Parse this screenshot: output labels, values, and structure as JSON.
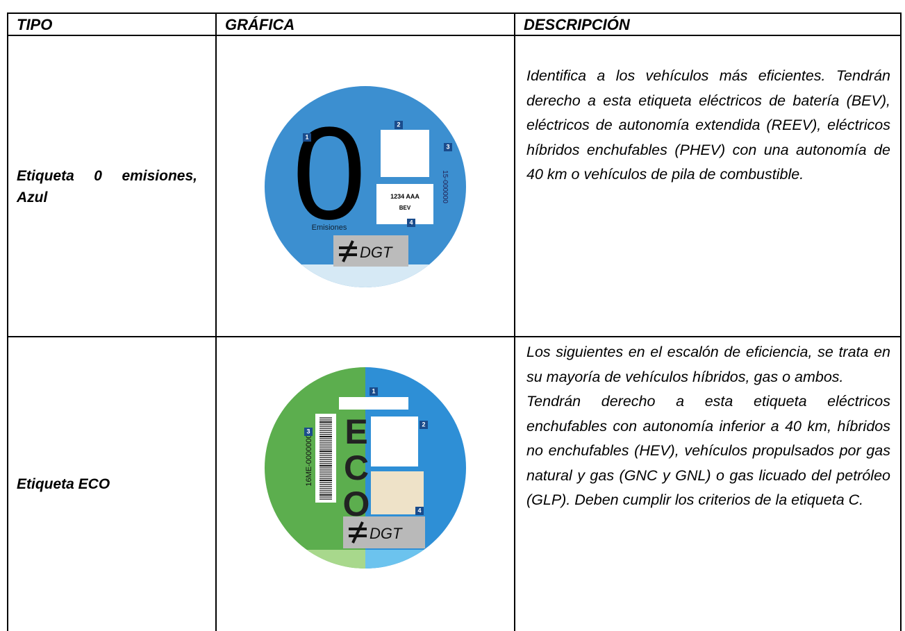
{
  "table": {
    "header": [
      "TIPO",
      "GRÁFICA",
      "DESCRIPCIÓN"
    ],
    "rows": [
      {
        "tipo": "Etiqueta 0 emisiones, Azul",
        "grafica": {
          "digit": "0",
          "caption": "Emisiones",
          "plate": "1234 AAA",
          "fuel": "BEV",
          "brand": "DGT",
          "serial": "15-000000",
          "markers": [
            "1",
            "2",
            "3",
            "4"
          ]
        },
        "descripcion": [
          "Identifica a los vehículos más eficientes. Tendrán derecho a esta etiqueta eléctricos de batería (BEV), eléctricos de autonomía extendida (REEV), eléctricos híbridos enchufables (PHEV) con una autonomía de 40 km o vehículos de pila de combustible."
        ]
      },
      {
        "tipo": "Etiqueta ECO",
        "grafica": {
          "label": "ECO",
          "brand": "DGT",
          "serial": "16ME-00000000",
          "markers": [
            "1",
            "2",
            "3",
            "4"
          ]
        },
        "descripcion": [
          "Los siguientes en el escalón de eficiencia, se trata en su mayoría de vehículos híbridos, gas o ambos.",
          "Tendrán derecho a esta etiqueta eléctricos enchufables con autonomía inferior a 40 km, híbridos no enchufables (HEV), vehículos propulsados por gas natural y gas (GNC y GNL) o gas licuado del petróleo (GLP). Deben cumplir los criterios de la etiqueta C."
        ]
      }
    ]
  }
}
